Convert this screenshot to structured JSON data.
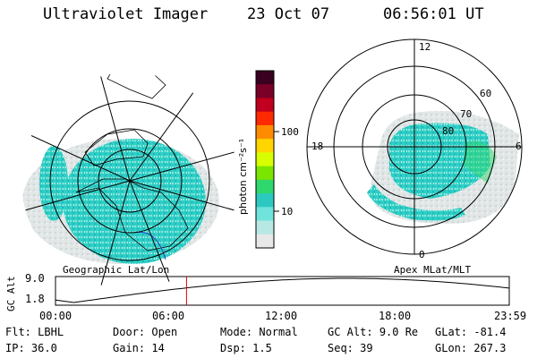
{
  "header": {
    "instrument": "Ultraviolet Imager",
    "date": "23 Oct 07",
    "time": "06:56:01 UT"
  },
  "left_map": {
    "label": "Geographic Lat/Lon"
  },
  "right_map": {
    "label": "Apex MLat/MLT",
    "mlt_labels": [
      "12",
      "18",
      "6",
      "0"
    ],
    "lat_labels": [
      "60",
      "70",
      "80"
    ]
  },
  "colorbar": {
    "unit_label": "photon cm⁻²s⁻¹",
    "ticks": [
      "100",
      "10"
    ],
    "colors": [
      "#3a001f",
      "#7a0028",
      "#c0001e",
      "#ff2a00",
      "#ff8c00",
      "#ffd500",
      "#d8ff00",
      "#7ae600",
      "#2fd86c",
      "#2cc9c0",
      "#6fe4dc",
      "#b8e8e4",
      "#e8e8e8"
    ]
  },
  "altitude_plot": {
    "y_axis_label": "GC Alt",
    "y_ticks": [
      "9.0",
      "1.8"
    ],
    "x_ticks": [
      "00:00",
      "06:00",
      "12:00",
      "18:00",
      "23:59"
    ],
    "current_time_hours": 6.93,
    "marker_color": "#e00000"
  },
  "status": {
    "row1": [
      {
        "label": "Flt:",
        "value": "LBHL"
      },
      {
        "label": "Door:",
        "value": "Open"
      },
      {
        "label": "Mode:",
        "value": "Normal"
      },
      {
        "label": "GC Alt:",
        "value": "9.0 Re"
      },
      {
        "label": "GLat:",
        "value": "-81.4"
      }
    ],
    "row2": [
      {
        "label": "IP:",
        "value": "36.0"
      },
      {
        "label": "Gain:",
        "value": "14"
      },
      {
        "label": "Dsp:",
        "value": "1.5"
      },
      {
        "label": "Seq:",
        "value": "39"
      },
      {
        "label": "GLon:",
        "value": "267.3"
      }
    ]
  }
}
